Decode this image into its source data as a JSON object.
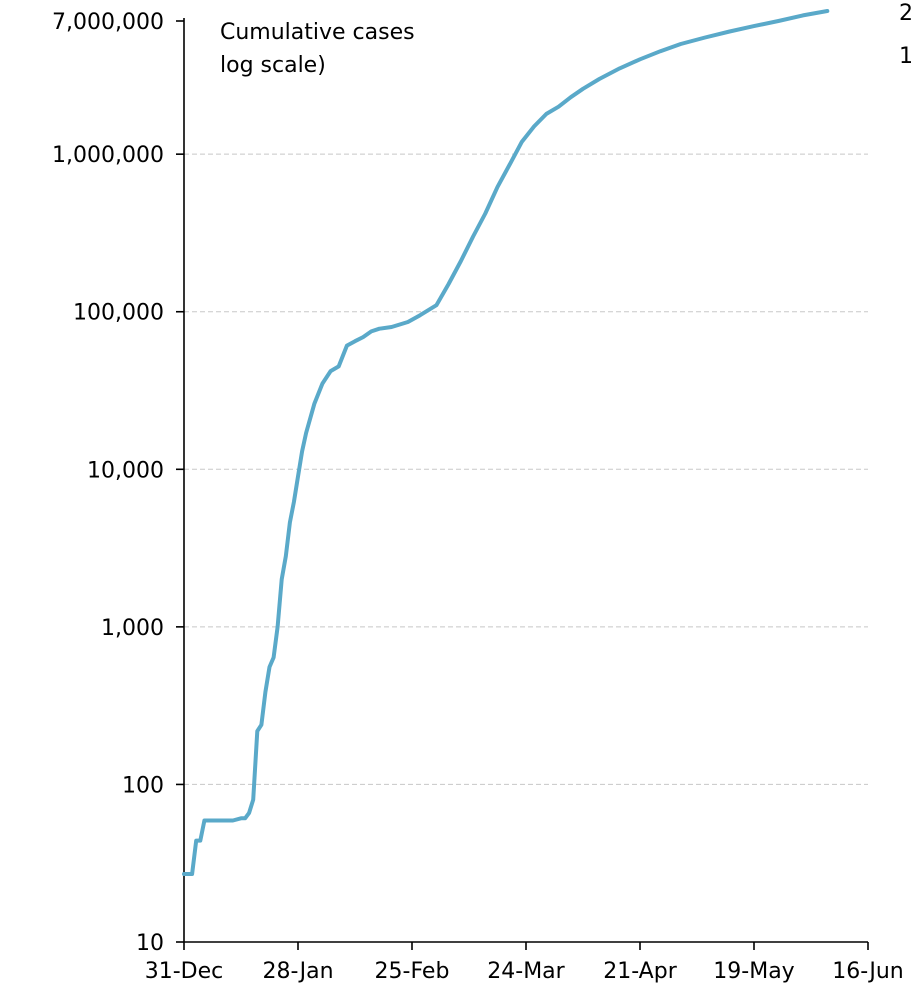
{
  "chart_data": {
    "type": "line",
    "title": "",
    "xlabel": "",
    "ylabel": "",
    "annotation": [
      "Cumulative cases",
      "log scale)"
    ],
    "yscale": "log",
    "ylim": [
      10,
      7000000
    ],
    "yticks": [
      10,
      100,
      1000,
      10000,
      100000,
      1000000,
      7000000
    ],
    "ytick_labels": [
      "10",
      "100",
      "1,000",
      "10,000",
      "100,000",
      "1,000,000",
      "7,000,000"
    ],
    "xlim": [
      "31-Dec",
      "16-Jun"
    ],
    "xticks": [
      "31-Dec",
      "28-Jan",
      "25-Feb",
      "24-Mar",
      "21-Apr",
      "19-May",
      "16-Jun"
    ],
    "grid": true,
    "line_color": "#5aa9c9",
    "clipped_right_labels": [
      "2",
      "1"
    ],
    "series": [
      {
        "x": [
          "31-Dec",
          "2-Jan",
          "3-Jan",
          "4-Jan",
          "5-Jan",
          "6-Jan",
          "12-Jan",
          "14-Jan",
          "15-Jan",
          "16-Jan",
          "17-Jan",
          "18-Jan",
          "19-Jan",
          "20-Jan",
          "21-Jan",
          "22-Jan",
          "23-Jan",
          "24-Jan",
          "25-Jan",
          "26-Jan",
          "27-Jan",
          "28-Jan",
          "29-Jan",
          "30-Jan",
          "1-Feb",
          "3-Feb",
          "5-Feb",
          "7-Feb",
          "9-Feb",
          "11-Feb",
          "13-Feb",
          "14-Feb",
          "15-Feb",
          "17-Feb",
          "20-Feb",
          "24-Feb",
          "27-Feb",
          "2-Mar",
          "5-Mar",
          "8-Mar",
          "11-Mar",
          "14-Mar",
          "17-Mar",
          "20-Mar",
          "23-Mar",
          "26-Mar",
          "29-Mar",
          "1-Apr",
          "4-Apr",
          "7-Apr",
          "11-Apr",
          "16-Apr",
          "21-Apr",
          "26-Apr",
          "1-May",
          "7-May",
          "13-May",
          "19-May",
          "25-May",
          "31-May",
          "6-Jun"
        ],
        "y": [
          27,
          27,
          44,
          44,
          59,
          59,
          59,
          61,
          61,
          66,
          80,
          218,
          239,
          386,
          556,
          639,
          1000,
          2000,
          2800,
          4600,
          6200,
          9000,
          13000,
          17000,
          26000,
          35000,
          42000,
          45000,
          61000,
          65000,
          69000,
          72000,
          75000,
          78000,
          80000,
          86000,
          95000,
          110000,
          150000,
          210000,
          300000,
          420000,
          620000,
          860000,
          1200000,
          1500000,
          1800000,
          2000000,
          2300000,
          2600000,
          3000000,
          3500000,
          4000000,
          4500000,
          5000000,
          5500000,
          6000000,
          6500000,
          7000000,
          7600000,
          8100000
        ]
      }
    ]
  }
}
